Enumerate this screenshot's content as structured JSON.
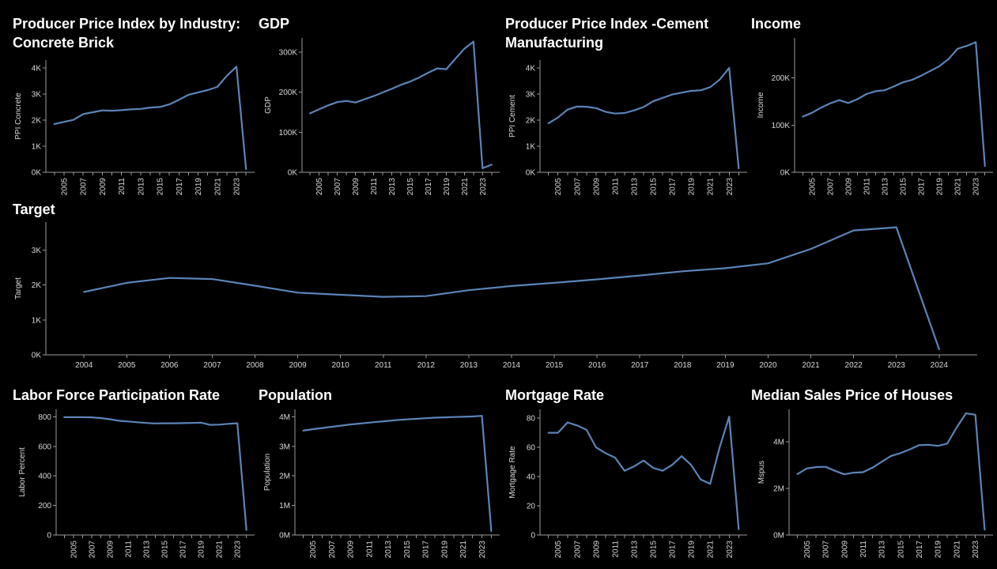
{
  "dashboard": {
    "background": "#000000",
    "accent": "#5b84b8"
  },
  "chart_data": [
    {
      "id": "ppi-concrete",
      "type": "line",
      "title": "Producer Price Index by Industry:\nConcrete Brick",
      "xlabel": "",
      "ylabel": "PPI Concrete",
      "yticks": [
        0,
        1000,
        2000,
        3000,
        4000
      ],
      "ytick_labels": [
        "0K",
        "1K",
        "2K",
        "3K",
        "4K"
      ],
      "ylim": [
        0,
        4300
      ],
      "x_tick_labels": [
        "2005",
        "2007",
        "2009",
        "2011",
        "2013",
        "2015",
        "2017",
        "2019",
        "2021",
        "2023"
      ],
      "x": [
        2004,
        2005,
        2006,
        2007,
        2008,
        2009,
        2010,
        2011,
        2012,
        2013,
        2014,
        2015,
        2016,
        2017,
        2018,
        2019,
        2020,
        2021,
        2022,
        2023,
        2024
      ],
      "series": [
        {
          "values": [
            1850,
            1930,
            2010,
            2230,
            2300,
            2370,
            2360,
            2380,
            2410,
            2430,
            2480,
            2500,
            2600,
            2780,
            2970,
            3060,
            3150,
            3270,
            3700,
            4050,
            120
          ]
        }
      ]
    },
    {
      "id": "gdp",
      "type": "line",
      "title": "GDP",
      "xlabel": "",
      "ylabel": "GDP",
      "yticks": [
        0,
        100000,
        200000,
        300000
      ],
      "ytick_labels": [
        "0K",
        "100K",
        "200K",
        "300K"
      ],
      "ylim": [
        0,
        335000
      ],
      "x_tick_labels": [
        "2005",
        "2007",
        "2009",
        "2011",
        "2013",
        "2015",
        "2017",
        "2019",
        "2021",
        "2023"
      ],
      "x": [
        2004,
        2005,
        2006,
        2007,
        2008,
        2009,
        2010,
        2011,
        2012,
        2013,
        2014,
        2015,
        2016,
        2017,
        2018,
        2019,
        2020,
        2021,
        2022,
        2023,
        2024
      ],
      "series": [
        {
          "values": [
            147000,
            157000,
            167000,
            175000,
            178000,
            174000,
            182000,
            190000,
            199000,
            208000,
            218000,
            226000,
            236000,
            248000,
            259000,
            257000,
            283000,
            308000,
            326000,
            10000,
            19000
          ]
        }
      ]
    },
    {
      "id": "ppi-cement",
      "type": "line",
      "title": "Producer Price Index -Cement\nManufacturing",
      "xlabel": "",
      "ylabel": "PPI Cement",
      "yticks": [
        0,
        1000,
        2000,
        3000,
        4000
      ],
      "ytick_labels": [
        "0K",
        "1K",
        "2K",
        "3K",
        "4K"
      ],
      "ylim": [
        0,
        4300
      ],
      "x_tick_labels": [
        "2005",
        "2007",
        "2009",
        "2011",
        "2013",
        "2015",
        "2017",
        "2019",
        "2021",
        "2023"
      ],
      "x": [
        2004,
        2005,
        2006,
        2007,
        2008,
        2009,
        2010,
        2011,
        2012,
        2013,
        2014,
        2015,
        2016,
        2017,
        2018,
        2019,
        2020,
        2021,
        2022,
        2023,
        2024
      ],
      "series": [
        {
          "values": [
            1880,
            2100,
            2400,
            2520,
            2510,
            2460,
            2320,
            2250,
            2270,
            2370,
            2500,
            2720,
            2850,
            2980,
            3050,
            3120,
            3140,
            3260,
            3550,
            4000,
            150
          ]
        }
      ]
    },
    {
      "id": "income",
      "type": "line",
      "title": "Income",
      "xlabel": "",
      "ylabel": "Income",
      "yticks": [
        0,
        100000,
        200000
      ],
      "ytick_labels": [
        "0K",
        "100K",
        "200K"
      ],
      "ylim": [
        0,
        285000
      ],
      "x_tick_labels": [
        "2005",
        "2007",
        "2009",
        "2011",
        "2013",
        "2015",
        "2017",
        "2019",
        "2021",
        "2023"
      ],
      "x": [
        2004,
        2005,
        2006,
        2007,
        2008,
        2009,
        2010,
        2011,
        2012,
        2013,
        2014,
        2015,
        2016,
        2017,
        2018,
        2019,
        2020,
        2021,
        2022,
        2023,
        2024
      ],
      "series": [
        {
          "values": [
            118000,
            126000,
            137000,
            146000,
            153000,
            147000,
            155000,
            166000,
            172000,
            174000,
            182000,
            191000,
            196000,
            205000,
            215000,
            225000,
            240000,
            262000,
            268000,
            276000,
            13000
          ]
        }
      ]
    },
    {
      "id": "target",
      "type": "line",
      "title": "Target",
      "xlabel": "",
      "ylabel": "Target",
      "yticks": [
        0,
        1000,
        2000,
        3000
      ],
      "ytick_labels": [
        "0K",
        "1K",
        "2K",
        "3K"
      ],
      "ylim": [
        0,
        3800
      ],
      "x_tick_labels": [
        "2004",
        "2005",
        "2006",
        "2007",
        "2008",
        "2009",
        "2010",
        "2011",
        "2012",
        "2013",
        "2014",
        "2015",
        "2016",
        "2017",
        "2018",
        "2019",
        "2020",
        "2021",
        "2022",
        "2023",
        "2024"
      ],
      "x": [
        2004,
        2005,
        2006,
        2007,
        2008,
        2009,
        2010,
        2011,
        2012,
        2013,
        2014,
        2015,
        2016,
        2017,
        2018,
        2019,
        2020,
        2021,
        2022,
        2023,
        2024
      ],
      "series": [
        {
          "values": [
            1800,
            2060,
            2200,
            2170,
            1980,
            1780,
            1720,
            1660,
            1680,
            1850,
            1970,
            2060,
            2160,
            2270,
            2390,
            2480,
            2620,
            3030,
            3560,
            3650,
            160
          ]
        }
      ]
    },
    {
      "id": "labor",
      "type": "line",
      "title": "Labor Force Participation Rate",
      "xlabel": "",
      "ylabel": "Labor Percent",
      "yticks": [
        0,
        200,
        400,
        600,
        800
      ],
      "ytick_labels": [
        "0",
        "200",
        "400",
        "600",
        "800"
      ],
      "ylim": [
        0,
        850
      ],
      "x_tick_labels": [
        "2005",
        "2007",
        "2009",
        "2011",
        "2013",
        "2015",
        "2017",
        "2019",
        "2021",
        "2023"
      ],
      "x": [
        2004,
        2005,
        2006,
        2007,
        2008,
        2009,
        2010,
        2011,
        2012,
        2013,
        2014,
        2015,
        2016,
        2017,
        2018,
        2019,
        2020,
        2021,
        2022,
        2023,
        2024
      ],
      "series": [
        {
          "values": [
            797,
            797,
            797,
            796,
            791,
            783,
            773,
            768,
            763,
            758,
            755,
            756,
            756,
            757,
            758,
            760,
            745,
            747,
            752,
            756,
            34
          ]
        }
      ]
    },
    {
      "id": "population",
      "type": "line",
      "title": "Population",
      "xlabel": "",
      "ylabel": "Population",
      "yticks": [
        0,
        1000000,
        2000000,
        3000000,
        4000000
      ],
      "ytick_labels": [
        "0M",
        "1M",
        "2M",
        "3M",
        "4M"
      ],
      "ylim": [
        0,
        4250000
      ],
      "x_tick_labels": [
        "2005",
        "2007",
        "2009",
        "2011",
        "2013",
        "2015",
        "2017",
        "2019",
        "2021",
        "2023"
      ],
      "x": [
        2004,
        2005,
        2006,
        2007,
        2008,
        2009,
        2010,
        2011,
        2012,
        2013,
        2014,
        2015,
        2016,
        2017,
        2018,
        2019,
        2020,
        2021,
        2022,
        2023,
        2024
      ],
      "series": [
        {
          "values": [
            3530000,
            3580000,
            3620000,
            3660000,
            3700000,
            3740000,
            3770000,
            3800000,
            3830000,
            3860000,
            3890000,
            3910000,
            3930000,
            3950000,
            3970000,
            3980000,
            3990000,
            4000000,
            4010000,
            4030000,
            130000
          ]
        }
      ]
    },
    {
      "id": "mortgage",
      "type": "line",
      "title": "Mortgage Rate",
      "xlabel": "",
      "ylabel": "Mortgage Rate",
      "yticks": [
        0,
        20,
        40,
        60,
        80
      ],
      "ytick_labels": [
        "0",
        "20",
        "40",
        "60",
        "80"
      ],
      "ylim": [
        0,
        86
      ],
      "x_tick_labels": [
        "2005",
        "2007",
        "2009",
        "2011",
        "2013",
        "2015",
        "2017",
        "2019",
        "2021",
        "2023"
      ],
      "x": [
        2004,
        2005,
        2006,
        2007,
        2008,
        2009,
        2010,
        2011,
        2012,
        2013,
        2014,
        2015,
        2016,
        2017,
        2018,
        2019,
        2020,
        2021,
        2022,
        2023,
        2024
      ],
      "series": [
        {
          "values": [
            70,
            70,
            77,
            75,
            72,
            60,
            56,
            53,
            44,
            47,
            51,
            46,
            44,
            48,
            54,
            48,
            38,
            35,
            60,
            81,
            4
          ]
        }
      ]
    },
    {
      "id": "mspus",
      "type": "line",
      "title": "Median Sales Price of Houses",
      "xlabel": "",
      "ylabel": "Mspus",
      "yticks": [
        0,
        2000000,
        4000000
      ],
      "ytick_labels": [
        "0M",
        "2M",
        "4M"
      ],
      "ylim": [
        0,
        5400000
      ],
      "x_tick_labels": [
        "2005",
        "2007",
        "2009",
        "2011",
        "2013",
        "2015",
        "2017",
        "2019",
        "2021",
        "2023"
      ],
      "x": [
        2004,
        2005,
        2006,
        2007,
        2008,
        2009,
        2010,
        2011,
        2012,
        2013,
        2014,
        2015,
        2016,
        2017,
        2018,
        2019,
        2020,
        2021,
        2022,
        2023,
        2024
      ],
      "series": [
        {
          "values": [
            2620000,
            2860000,
            2920000,
            2930000,
            2760000,
            2610000,
            2680000,
            2700000,
            2890000,
            3150000,
            3400000,
            3520000,
            3680000,
            3860000,
            3880000,
            3830000,
            3930000,
            4620000,
            5230000,
            5170000,
            230000
          ]
        }
      ]
    }
  ]
}
